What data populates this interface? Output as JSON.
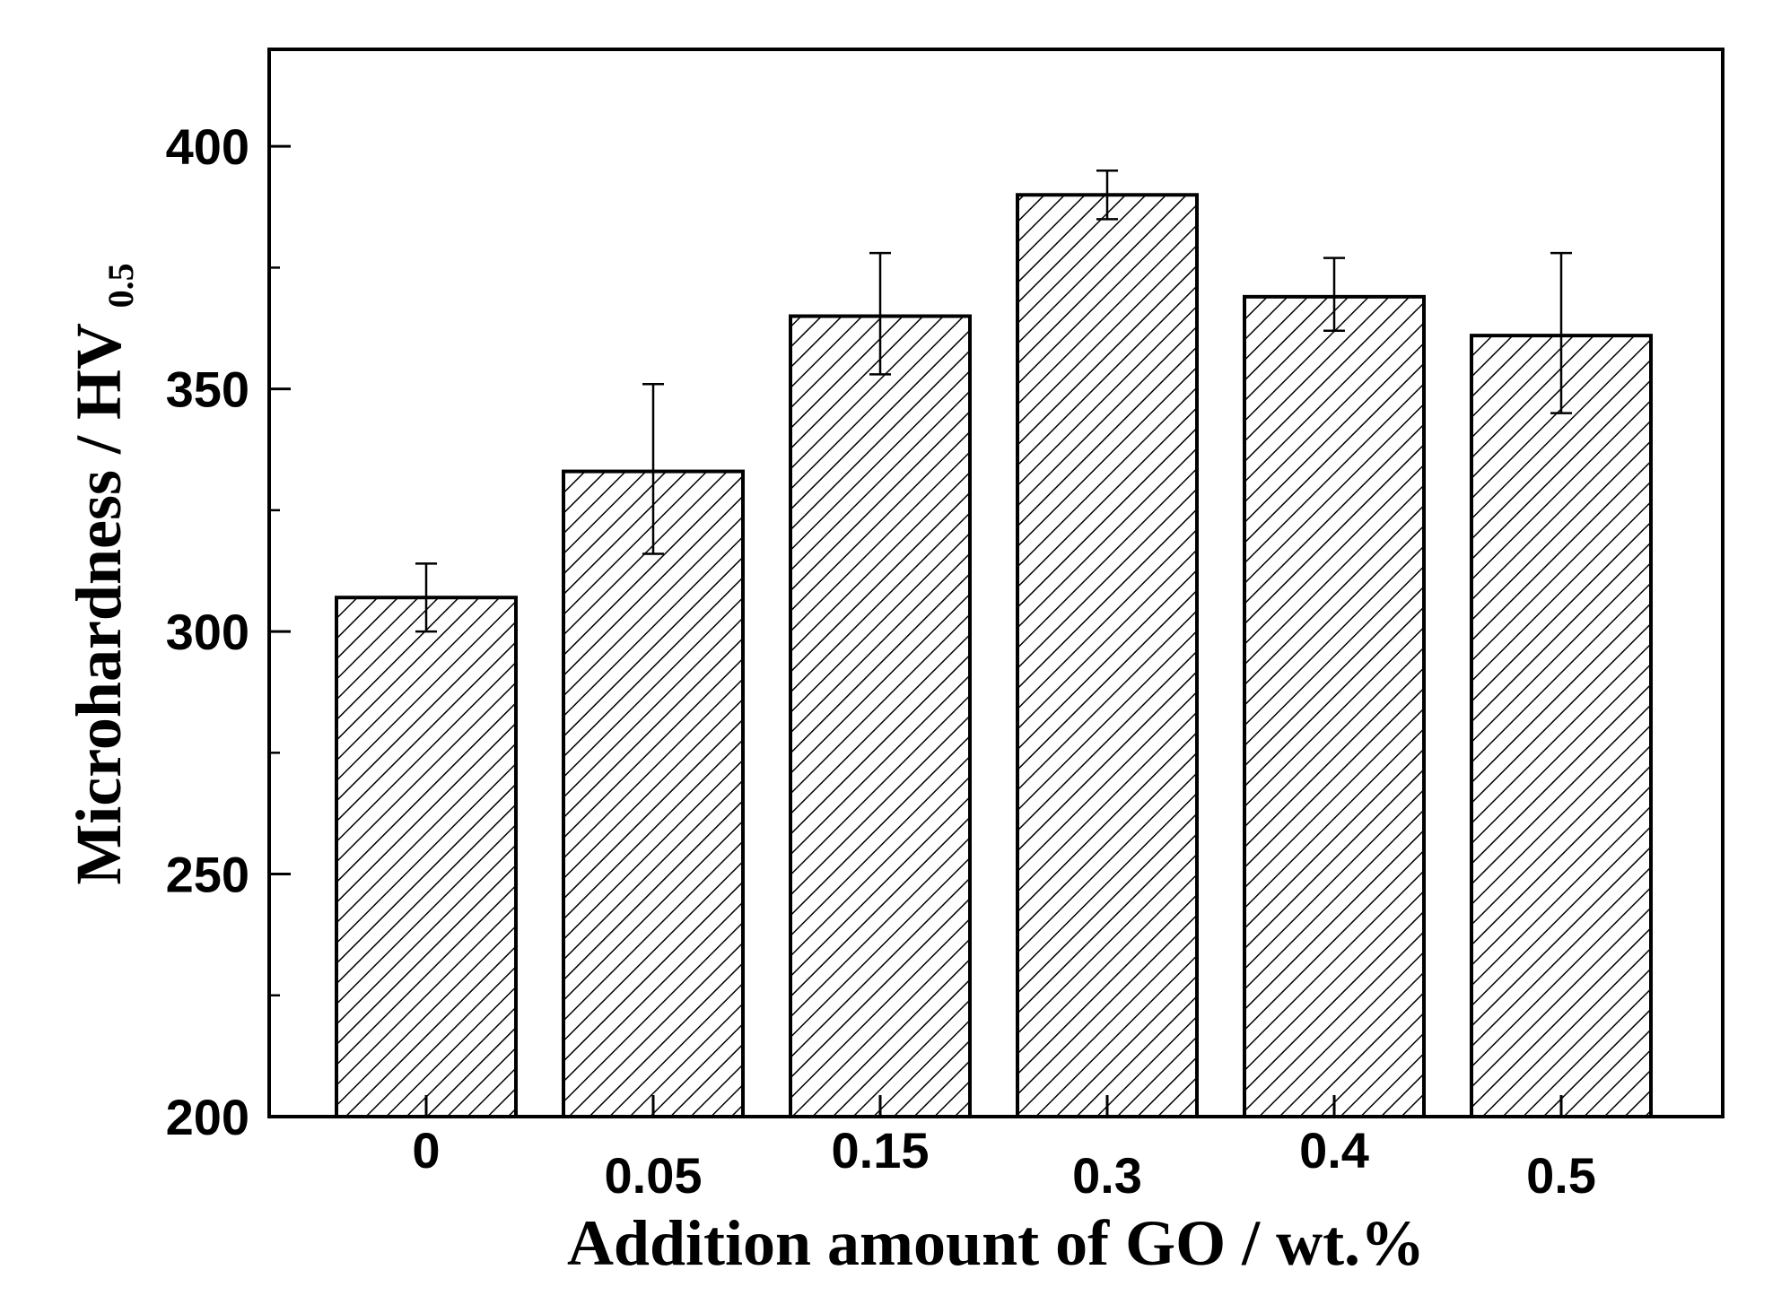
{
  "chart_data": {
    "type": "bar",
    "title": "",
    "xlabel": "Addition amount of GO / wt.%",
    "ylabel_main": "Microhardness / HV",
    "ylabel_subscript": "0.5",
    "categories": [
      "0",
      "0.05",
      "0.15",
      "0.3",
      "0.4",
      "0.5"
    ],
    "values": [
      307,
      333,
      365,
      390,
      369,
      361
    ],
    "error_upper": [
      314,
      351,
      378,
      395,
      377,
      378
    ],
    "error_lower": [
      300,
      316,
      353,
      385,
      362,
      345
    ],
    "ylim": [
      200,
      420
    ],
    "yticks": [
      200,
      250,
      300,
      350,
      400
    ],
    "yticks_labels": [
      "200",
      "250",
      "300",
      "350",
      "400"
    ],
    "grid": false,
    "legend": "none",
    "bar_fill": "hatched",
    "colors": {
      "bar_stroke": "#000000",
      "hatch": "#000000",
      "background": "#ffffff"
    }
  }
}
